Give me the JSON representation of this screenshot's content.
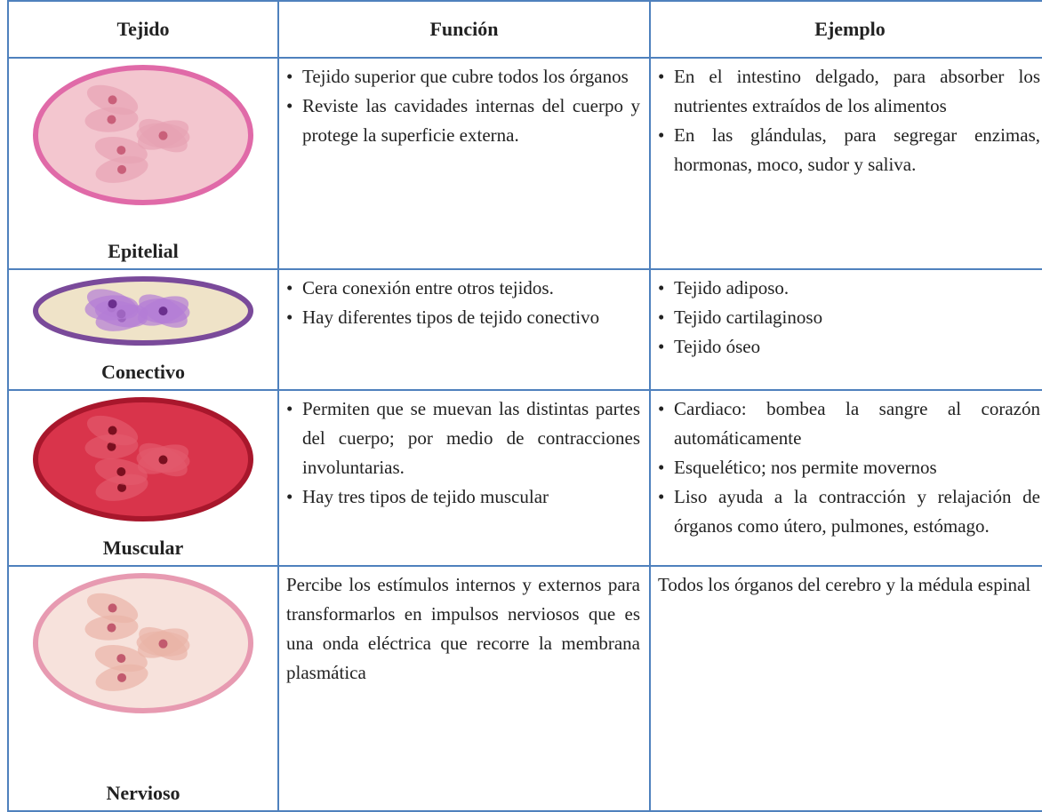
{
  "table": {
    "header": [
      "Tejido",
      "Función",
      "Ejemplo"
    ],
    "rows": [
      {
        "tissue": "Epitelial",
        "function": [
          "Tejido superior que cubre todos los órganos",
          "Reviste  las cavidades internas del cuerpo y protege la superficie externa."
        ],
        "example": [
          "En el intestino delgado, para absorber los nutrientes extraídos de los alimentos",
          "En las glándulas, para segregar enzimas, hormonas, moco, sudor y saliva."
        ]
      },
      {
        "tissue": "Conectivo",
        "function": [
          "Cera conexión entre otros tejidos.",
          "Hay diferentes tipos de tejido conectivo"
        ],
        "example": [
          "Tejido adiposo.",
          "Tejido cartilaginoso",
          "Tejido óseo"
        ]
      },
      {
        "tissue": "Muscular",
        "function": [
          "Permiten que se muevan las distintas partes del cuerpo; por medio de contracciones involuntarias.",
          "Hay tres tipos de tejido muscular"
        ],
        "example": [
          "Cardiaco: bombea  la sangre al corazón automáticamente",
          "Esquelético; nos permite movernos",
          "Liso ayuda a la contracción y relajación de órganos como  útero, pulmones, estómago."
        ]
      },
      {
        "tissue": "Nervioso",
        "function": "Percibe los estímulos internos y externos para transformarlos en impulsos nerviosos que es una onda eléctrica que recorre la membrana plasmática",
        "example": "Todos los órganos del cerebro y la médula espinal"
      }
    ]
  }
}
